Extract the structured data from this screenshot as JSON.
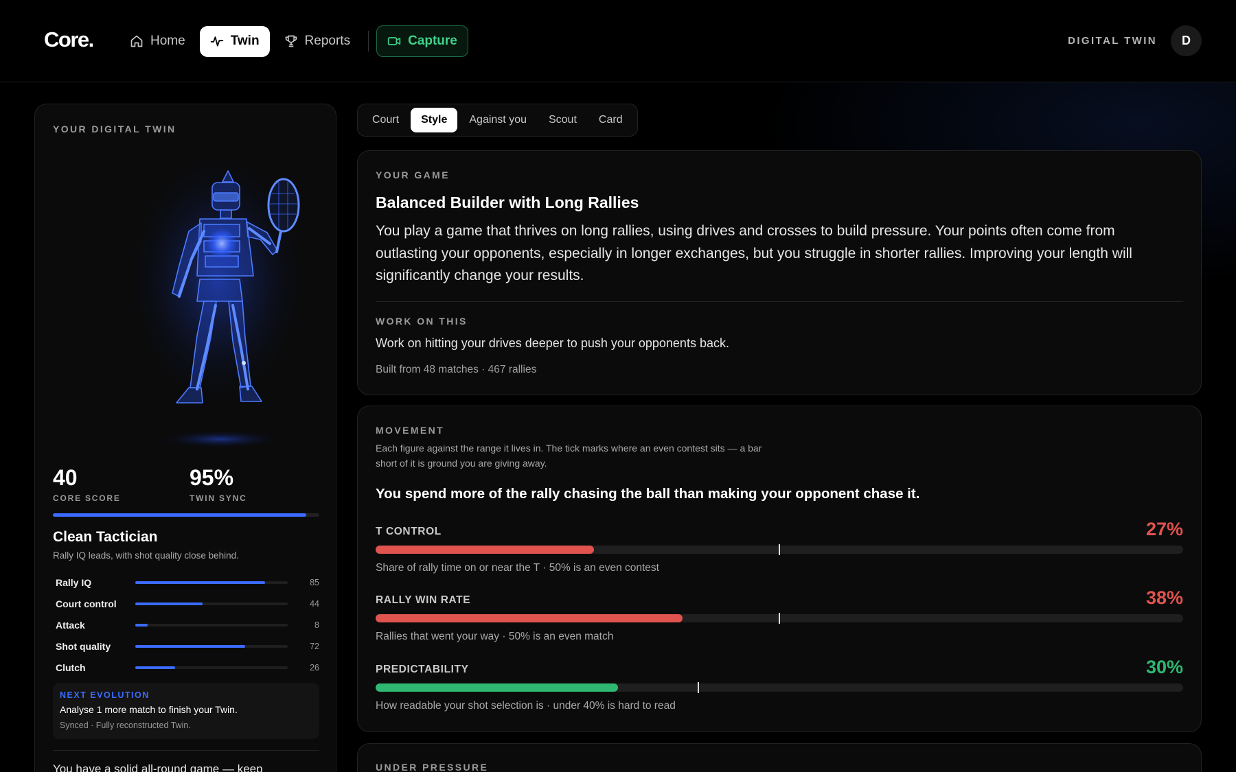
{
  "app": {
    "logo": "Core."
  },
  "nav": {
    "items": [
      {
        "label": "Home",
        "icon": "home-icon",
        "active": false
      },
      {
        "label": "Twin",
        "icon": "pulse-icon",
        "active": true
      },
      {
        "label": "Reports",
        "icon": "trophy-icon",
        "active": false
      }
    ],
    "capture_label": "Capture",
    "capture_icon": "video-camera-icon",
    "right_label": "DIGITAL TWIN",
    "avatar_initial": "D"
  },
  "twin_panel": {
    "title": "YOUR DIGITAL TWIN",
    "core_score": "40",
    "core_score_label": "CORE SCORE",
    "twin_sync": "95%",
    "twin_sync_label": "TWIN SYNC",
    "twin_sync_fraction": 0.95,
    "persona": "Clean Tactician",
    "persona_desc": "Rally IQ leads, with shot quality close behind.",
    "stats": [
      {
        "name": "Rally IQ",
        "value": 85
      },
      {
        "name": "Court control",
        "value": 44
      },
      {
        "name": "Attack",
        "value": 8
      },
      {
        "name": "Shot quality",
        "value": 72
      },
      {
        "name": "Clutch",
        "value": 26
      }
    ],
    "next_evolution": {
      "title": "NEXT EVOLUTION",
      "main": "Analyse 1 more match to finish your Twin.",
      "sub": "Synced · Fully reconstructed Twin."
    },
    "summary": "You have a solid all-round game — keep"
  },
  "tabs": [
    {
      "label": "Court",
      "active": false
    },
    {
      "label": "Style",
      "active": true
    },
    {
      "label": "Against you",
      "active": false
    },
    {
      "label": "Scout",
      "active": false
    },
    {
      "label": "Card",
      "active": false
    }
  ],
  "your_game": {
    "label": "YOUR GAME",
    "title": "Balanced Builder with Long Rallies",
    "description": "You play a game that thrives on long rallies, using drives and crosses to build pressure. Your points often come from outlasting your opponents, especially in longer exchanges, but you struggle in shorter rallies. Improving your length will significantly change your results.",
    "work_label": "WORK ON THIS",
    "work_text": "Work on hitting your drives deeper to push your opponents back.",
    "built_from": "Built from 48 matches · 467 rallies"
  },
  "movement": {
    "label": "MOVEMENT",
    "description": "Each figure against the range it lives in. The tick marks where an even contest sits — a bar short of it is ground you are giving away.",
    "headline": "You spend more of the rally chasing the ball than making your opponent chase it.",
    "metrics": [
      {
        "name": "T CONTROL",
        "value": "27%",
        "fraction": 0.27,
        "tick": 0.5,
        "color": "#e0534f",
        "note": "Share of rally time on or near the T · 50% is an even contest"
      },
      {
        "name": "RALLY WIN RATE",
        "value": "38%",
        "fraction": 0.38,
        "tick": 0.5,
        "color": "#e0534f",
        "note": "Rallies that went your way · 50% is an even match"
      },
      {
        "name": "PREDICTABILITY",
        "value": "30%",
        "fraction": 0.3,
        "tick": 0.4,
        "color": "#2eb872",
        "note": "How readable your shot selection is · under 40% is hard to read"
      }
    ]
  },
  "under_pressure": {
    "label": "UNDER PRESSURE"
  },
  "colors": {
    "accent_blue": "#3b6bff",
    "negative": "#e0534f",
    "positive": "#2eb872",
    "capture_green": "#3fd28a"
  }
}
